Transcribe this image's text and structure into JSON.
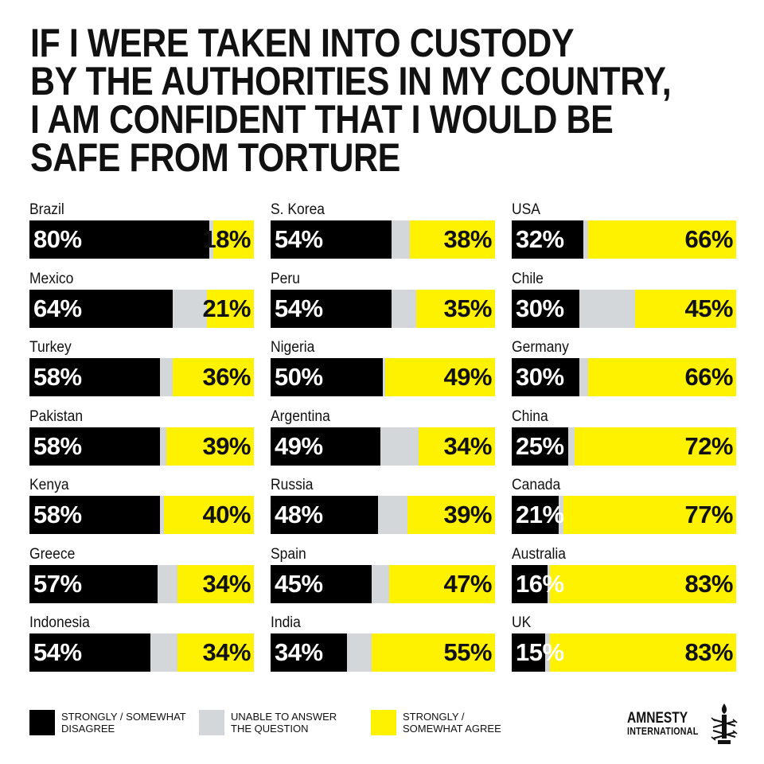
{
  "title_lines": [
    "IF I WERE TAKEN INTO CUSTODY",
    "BY THE AUTHORITIES IN MY COUNTRY,",
    "I AM CONFIDENT THAT I WOULD BE",
    "SAFE FROM TORTURE"
  ],
  "legend": {
    "disagree": "STRONGLY / SOMEWHAT DISAGREE",
    "unable": "UNABLE TO ANSWER THE QUESTION",
    "agree": "STRONGLY / SOMEWHAT AGREE"
  },
  "brand": {
    "name": "AMNESTY",
    "sub": "INTERNATIONAL"
  },
  "colors": {
    "disagree": "#000000",
    "unable": "#d4d7da",
    "agree": "#fff200"
  },
  "icons": {
    "logo": "candle-barbed-wire-icon"
  },
  "chart_data": {
    "type": "bar",
    "stacked": true,
    "orientation": "horizontal",
    "series": [
      {
        "name": "STRONGLY / SOMEWHAT DISAGREE"
      },
      {
        "name": "UNABLE TO ANSWER THE QUESTION"
      },
      {
        "name": "STRONGLY / SOMEWHAT AGREE"
      }
    ],
    "columns": [
      [
        {
          "country": "Brazil",
          "disagree": 80,
          "agree": 18
        },
        {
          "country": "Mexico",
          "disagree": 64,
          "agree": 21
        },
        {
          "country": "Turkey",
          "disagree": 58,
          "agree": 36
        },
        {
          "country": "Pakistan",
          "disagree": 58,
          "agree": 39
        },
        {
          "country": "Kenya",
          "disagree": 58,
          "agree": 40
        },
        {
          "country": "Greece",
          "disagree": 57,
          "agree": 34
        },
        {
          "country": "Indonesia",
          "disagree": 54,
          "agree": 34
        }
      ],
      [
        {
          "country": "S. Korea",
          "disagree": 54,
          "agree": 38
        },
        {
          "country": "Peru",
          "disagree": 54,
          "agree": 35
        },
        {
          "country": "Nigeria",
          "disagree": 50,
          "agree": 49
        },
        {
          "country": "Argentina",
          "disagree": 49,
          "agree": 34
        },
        {
          "country": "Russia",
          "disagree": 48,
          "agree": 39
        },
        {
          "country": "Spain",
          "disagree": 45,
          "agree": 47
        },
        {
          "country": "India",
          "disagree": 34,
          "agree": 55
        }
      ],
      [
        {
          "country": "USA",
          "disagree": 32,
          "agree": 66
        },
        {
          "country": "Chile",
          "disagree": 30,
          "agree": 45
        },
        {
          "country": "Germany",
          "disagree": 30,
          "agree": 66
        },
        {
          "country": "China",
          "disagree": 25,
          "agree": 72
        },
        {
          "country": "Canada",
          "disagree": 21,
          "agree": 77
        },
        {
          "country": "Australia",
          "disagree": 16,
          "agree": 83
        },
        {
          "country": "UK",
          "disagree": 15,
          "agree": 83
        }
      ]
    ]
  }
}
